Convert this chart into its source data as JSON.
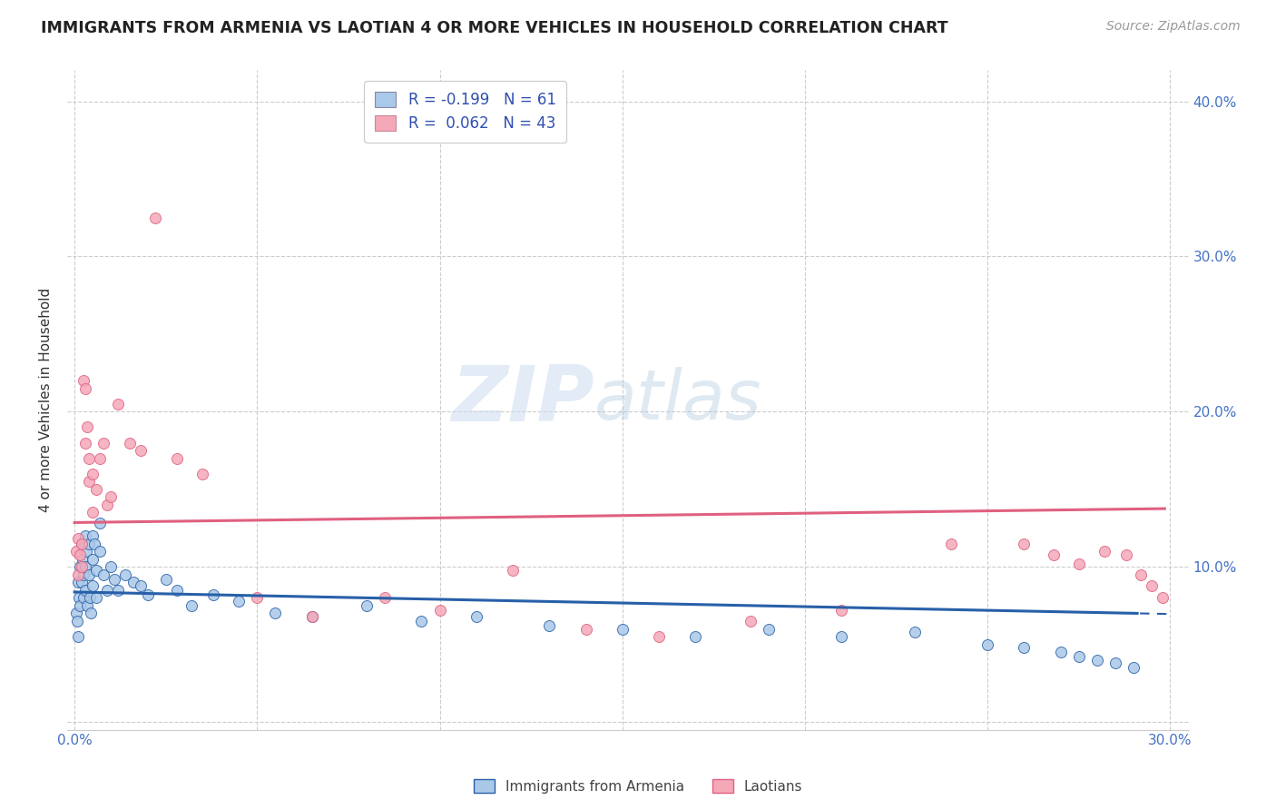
{
  "title": "IMMIGRANTS FROM ARMENIA VS LAOTIAN 4 OR MORE VEHICLES IN HOUSEHOLD CORRELATION CHART",
  "source": "Source: ZipAtlas.com",
  "ylabel": "4 or more Vehicles in Household",
  "xlim": [
    -0.002,
    0.305
  ],
  "ylim": [
    -0.005,
    0.42
  ],
  "R1": -0.199,
  "N1": 61,
  "R2": 0.062,
  "N2": 43,
  "color_armenia": "#aac8e8",
  "color_laotian": "#f4a8b8",
  "color_line_armenia": "#2860a8",
  "color_line_laotian": "#e06080",
  "legend_label1": "Immigrants from Armenia",
  "legend_label2": "Laotians",
  "armenia_x": [
    0.0005,
    0.0008,
    0.001,
    0.001,
    0.0012,
    0.0015,
    0.0015,
    0.002,
    0.002,
    0.0022,
    0.0025,
    0.0025,
    0.003,
    0.003,
    0.003,
    0.0033,
    0.0035,
    0.004,
    0.004,
    0.0042,
    0.0045,
    0.005,
    0.005,
    0.005,
    0.0055,
    0.006,
    0.006,
    0.007,
    0.007,
    0.008,
    0.009,
    0.01,
    0.011,
    0.012,
    0.014,
    0.016,
    0.018,
    0.02,
    0.025,
    0.028,
    0.032,
    0.038,
    0.045,
    0.055,
    0.065,
    0.08,
    0.095,
    0.11,
    0.13,
    0.15,
    0.17,
    0.19,
    0.21,
    0.23,
    0.25,
    0.26,
    0.27,
    0.275,
    0.28,
    0.285,
    0.29
  ],
  "armenia_y": [
    0.07,
    0.065,
    0.09,
    0.055,
    0.08,
    0.1,
    0.075,
    0.115,
    0.09,
    0.105,
    0.095,
    0.08,
    0.12,
    0.1,
    0.085,
    0.11,
    0.075,
    0.115,
    0.095,
    0.08,
    0.07,
    0.12,
    0.105,
    0.088,
    0.115,
    0.098,
    0.08,
    0.128,
    0.11,
    0.095,
    0.085,
    0.1,
    0.092,
    0.085,
    0.095,
    0.09,
    0.088,
    0.082,
    0.092,
    0.085,
    0.075,
    0.082,
    0.078,
    0.07,
    0.068,
    0.075,
    0.065,
    0.068,
    0.062,
    0.06,
    0.055,
    0.06,
    0.055,
    0.058,
    0.05,
    0.048,
    0.045,
    0.042,
    0.04,
    0.038,
    0.035
  ],
  "laotian_x": [
    0.0005,
    0.001,
    0.001,
    0.0015,
    0.002,
    0.002,
    0.0025,
    0.003,
    0.003,
    0.0035,
    0.004,
    0.004,
    0.005,
    0.005,
    0.006,
    0.007,
    0.008,
    0.009,
    0.01,
    0.012,
    0.015,
    0.018,
    0.022,
    0.028,
    0.035,
    0.05,
    0.065,
    0.085,
    0.1,
    0.12,
    0.14,
    0.16,
    0.185,
    0.21,
    0.24,
    0.26,
    0.268,
    0.275,
    0.282,
    0.288,
    0.292,
    0.295,
    0.298
  ],
  "laotian_y": [
    0.11,
    0.118,
    0.095,
    0.108,
    0.115,
    0.1,
    0.22,
    0.215,
    0.18,
    0.19,
    0.17,
    0.155,
    0.16,
    0.135,
    0.15,
    0.17,
    0.18,
    0.14,
    0.145,
    0.205,
    0.18,
    0.175,
    0.325,
    0.17,
    0.16,
    0.08,
    0.068,
    0.08,
    0.072,
    0.098,
    0.06,
    0.055,
    0.065,
    0.072,
    0.115,
    0.115,
    0.108,
    0.102,
    0.11,
    0.108,
    0.095,
    0.088,
    0.08
  ]
}
